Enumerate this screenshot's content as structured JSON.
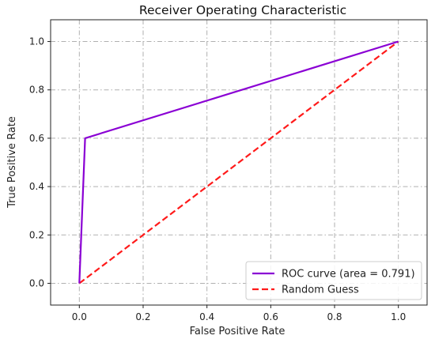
{
  "chart_data": {
    "type": "line",
    "title": "Receiver Operating Characteristic",
    "xlabel": "False Positive Rate",
    "ylabel": "True Positive Rate",
    "xlim": [
      -0.09,
      1.09
    ],
    "ylim": [
      -0.09,
      1.09
    ],
    "xticks": [
      0.0,
      0.2,
      0.4,
      0.6,
      0.8,
      1.0
    ],
    "yticks": [
      0.0,
      0.2,
      0.4,
      0.6,
      0.8,
      1.0
    ],
    "xtick_labels": [
      "0.0",
      "0.2",
      "0.4",
      "0.6",
      "0.8",
      "1.0"
    ],
    "ytick_labels": [
      "0.0",
      "0.2",
      "0.4",
      "0.6",
      "0.8",
      "1.0"
    ],
    "grid": true,
    "legend_position": "lower-right",
    "series": [
      {
        "name": "ROC curve (area = 0.791)",
        "color": "#8a00d4",
        "style": "solid",
        "x": [
          0.0,
          0.018,
          1.0
        ],
        "y": [
          0.0,
          0.6,
          1.0
        ]
      },
      {
        "name": "Random Guess",
        "color": "#ff1a1a",
        "style": "dashed",
        "x": [
          0.0,
          1.0
        ],
        "y": [
          0.0,
          1.0
        ]
      }
    ]
  }
}
